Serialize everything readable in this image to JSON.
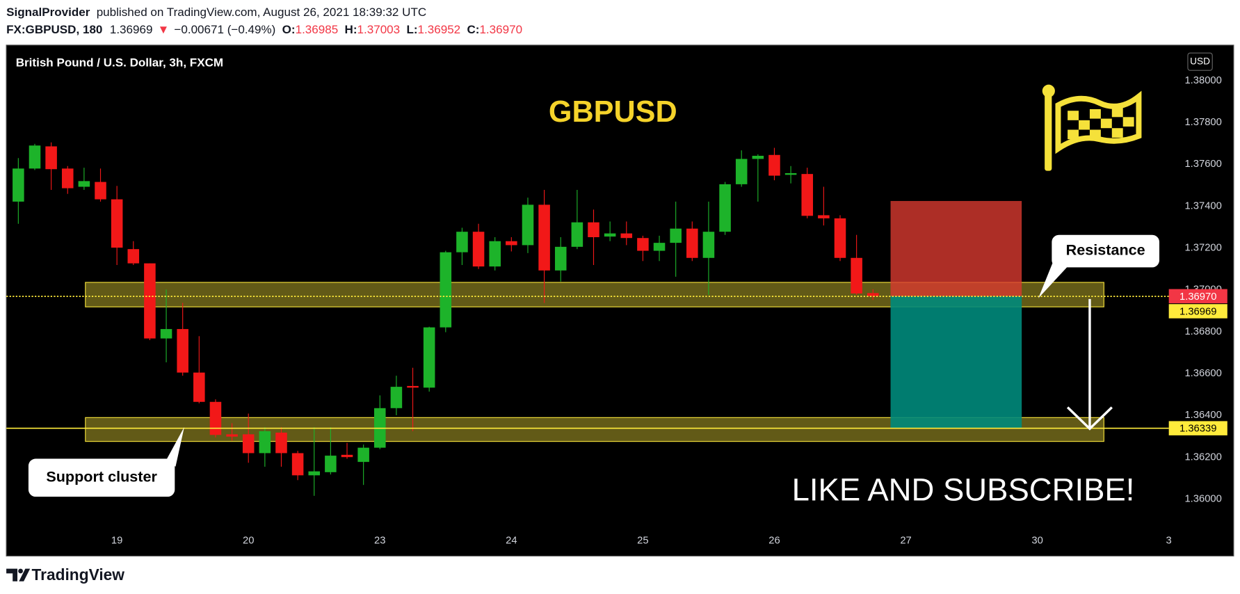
{
  "header": {
    "publisher": "SignalProvider",
    "published": "published on TradingView.com, August 26, 2021 18:39:32 UTC",
    "symbol": "FX:GBPUSD, 180",
    "last": "1.36969",
    "arrow": "▼",
    "change": "−0.00671 (−0.49%)",
    "open_label": "O:",
    "open": "1.36985",
    "high_label": "H:",
    "high": "1.37003",
    "low_label": "L:",
    "low": "1.36952",
    "close_label": "C:",
    "close": "1.36970"
  },
  "footer": {
    "brand": "TradingView"
  },
  "chart_data": {
    "type": "candlestick",
    "legend": "British Pound / U.S. Dollar, 3h, FXCM",
    "currency": "USD",
    "title": "GBPUSD",
    "annotation": "LIKE AND SUBSCRIBE!",
    "up_color": "#1db32a",
    "down_color": "#f21818",
    "x": [
      -6,
      -5,
      -4,
      -3,
      -2,
      -1,
      0,
      1,
      2,
      3,
      4,
      5,
      6,
      7,
      8,
      9,
      10,
      11,
      12,
      13,
      14,
      15,
      16,
      17,
      18,
      19,
      20,
      21,
      22,
      23,
      24,
      25,
      26,
      27,
      28,
      29,
      30,
      31,
      32,
      33,
      34,
      35,
      36,
      37,
      38,
      39,
      40,
      41,
      42,
      43,
      44,
      45,
      46
    ],
    "open": [
      1.37422,
      1.3758,
      1.37686,
      1.3758,
      1.37493,
      1.37516,
      1.37433,
      1.37195,
      1.37127,
      1.36768,
      1.36813,
      1.36605,
      1.36465,
      1.3631,
      1.3631,
      1.3622,
      1.36318,
      1.3622,
      1.36114,
      1.36129,
      1.36212,
      1.36178,
      1.36246,
      1.36435,
      1.36541,
      1.36533,
      1.36821,
      1.3718,
      1.37278,
      1.37112,
      1.37233,
      1.37214,
      1.37407,
      1.37093,
      1.37206,
      1.37323,
      1.37255,
      1.3727,
      1.37248,
      1.37187,
      1.37225,
      1.37293,
      1.37153,
      1.37278,
      1.37505,
      1.37626,
      1.37645,
      1.3755,
      1.37554,
      1.37357,
      1.37342,
      1.37153,
      1.36985
    ],
    "high": [
      1.3763,
      1.37698,
      1.37705,
      1.37592,
      1.37584,
      1.3758,
      1.37497,
      1.37233,
      1.37127,
      1.37002,
      1.36938,
      1.36779,
      1.36477,
      1.36363,
      1.36409,
      1.36344,
      1.36344,
      1.36231,
      1.36344,
      1.36344,
      1.36269,
      1.36261,
      1.36496,
      1.3659,
      1.36628,
      1.36824,
      1.37187,
      1.37297,
      1.37316,
      1.37252,
      1.37252,
      1.37441,
      1.37478,
      1.37252,
      1.37478,
      1.37384,
      1.37327,
      1.37327,
      1.37259,
      1.37259,
      1.37422,
      1.37327,
      1.37422,
      1.37516,
      1.37667,
      1.37648,
      1.37679,
      1.37592,
      1.37584,
      1.37493,
      1.37357,
      1.37263,
      1.37003
    ],
    "low": [
      1.37316,
      1.37573,
      1.37478,
      1.37459,
      1.37478,
      1.37422,
      1.37119,
      1.37119,
      1.3676,
      1.36654,
      1.3659,
      1.36458,
      1.36295,
      1.3628,
      1.36174,
      1.36155,
      1.36155,
      1.36091,
      1.36016,
      1.36118,
      1.36193,
      1.36068,
      1.36239,
      1.36401,
      1.36325,
      1.36514,
      1.36798,
      1.37119,
      1.371,
      1.37093,
      1.37184,
      1.37176,
      1.36938,
      1.3704,
      1.37195,
      1.37119,
      1.37233,
      1.37214,
      1.37138,
      1.37138,
      1.37063,
      1.37138,
      1.36976,
      1.37263,
      1.37493,
      1.37422,
      1.37524,
      1.37509,
      1.37342,
      1.37308,
      1.37138,
      1.36976,
      1.36952
    ],
    "close": [
      1.3758,
      1.3769,
      1.37577,
      1.37486,
      1.3752,
      1.37433,
      1.37202,
      1.37127,
      1.36768,
      1.36813,
      1.36605,
      1.36465,
      1.36307,
      1.36299,
      1.3622,
      1.36325,
      1.3622,
      1.36114,
      1.36133,
      1.36208,
      1.36201,
      1.36246,
      1.36435,
      1.36537,
      1.36533,
      1.36821,
      1.3718,
      1.37278,
      1.37112,
      1.37233,
      1.37214,
      1.37407,
      1.37093,
      1.37206,
      1.37323,
      1.37252,
      1.3727,
      1.37248,
      1.37187,
      1.37225,
      1.37293,
      1.37153,
      1.37278,
      1.37505,
      1.37626,
      1.37641,
      1.37546,
      1.37558,
      1.37354,
      1.37342,
      1.37153,
      1.36983,
      1.3697
    ],
    "xlim": [
      -6.73,
      64
    ],
    "ylim": [
      1.35853,
      1.3817
    ],
    "xticks": [
      {
        "value": 0,
        "label": "19"
      },
      {
        "value": 8,
        "label": "20"
      },
      {
        "value": 16,
        "label": "23"
      },
      24,
      {
        "value": 32,
        "label": "25"
      },
      {
        "value": 40,
        "label": "26"
      },
      {
        "value": 48,
        "label": "27"
      },
      {
        "value": 56,
        "label": "30"
      },
      {
        "value": 64,
        "label": "3"
      }
    ],
    "yticks": [
      {
        "value": 1.36,
        "label": "1.36000"
      },
      {
        "value": 1.362,
        "label": "1.36200"
      },
      {
        "value": 1.364,
        "label": "1.36400"
      },
      {
        "value": 1.366,
        "label": "1.36600"
      },
      {
        "value": 1.368,
        "label": "1.36800"
      },
      {
        "value": 1.37,
        "label": "1.37000"
      },
      {
        "value": 1.372,
        "label": "1.37200"
      },
      {
        "value": 1.374,
        "label": "1.37400"
      },
      {
        "value": 1.376,
        "label": "1.37600"
      },
      {
        "value": 1.378,
        "label": "1.37800"
      },
      {
        "value": 1.38,
        "label": "1.38000"
      }
    ],
    "grid": false,
    "zones": [
      {
        "label": "Resistance",
        "low": 1.36919,
        "high": 1.37036,
        "x": [
          -1.92,
          60.05
        ],
        "color": "#f5e13a"
      },
      {
        "label": "Support cluster",
        "low": 1.36276,
        "high": 1.3639,
        "x": [
          -1.92,
          60.05
        ],
        "color": "#f5e13a"
      }
    ],
    "position": {
      "x": [
        47.07,
        55.05
      ],
      "stop": 1.37425,
      "entry": 1.3697,
      "target": 1.36337,
      "stop_color": "#d83a30",
      "target_color": "#00897b"
    },
    "price_lines": [
      {
        "value": 1.3697,
        "label": "1.36970",
        "color": "#f23645",
        "text_color": "#ffffff",
        "line": "none"
      },
      {
        "value": 1.36969,
        "label": "1.36969",
        "color": "#ffeb3b",
        "text_color": "#000000",
        "line": "dotted"
      },
      {
        "value": 1.36339,
        "label": "1.36339",
        "color": "#ffeb3b",
        "text_color": "#000000",
        "line": "solid"
      }
    ]
  }
}
